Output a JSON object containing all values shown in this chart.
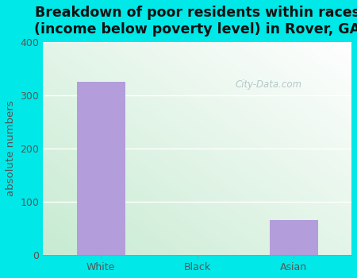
{
  "categories": [
    "White",
    "Black",
    "Asian"
  ],
  "values": [
    325,
    0,
    65
  ],
  "bar_color": "#b39ddb",
  "title": "Breakdown of poor residents within races\n(income below poverty level) in Rover, GA",
  "ylabel": "absolute numbers",
  "ylim": [
    0,
    400
  ],
  "yticks": [
    0,
    100,
    200,
    300,
    400
  ],
  "bg_outer": "#00e8e8",
  "title_fontsize": 12.5,
  "axis_label_fontsize": 9.5,
  "tick_fontsize": 9,
  "bar_width": 0.5,
  "watermark": "City-Data.com",
  "grid_color": "#ccddcc"
}
